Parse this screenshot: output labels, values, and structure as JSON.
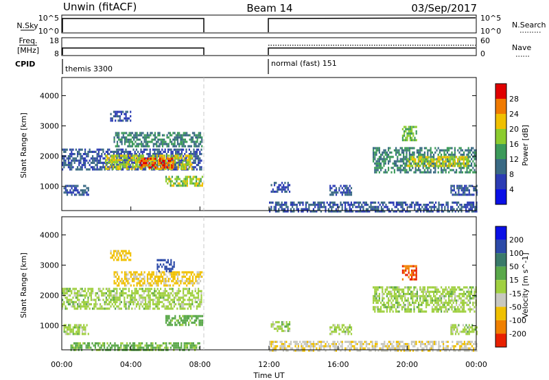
{
  "header": {
    "title_left": "Unwin (fitACF)",
    "title_center": "Beam 14",
    "title_right": "03/Sep/2017"
  },
  "panels": {
    "nsky": {
      "label": "N.Sky",
      "right_label": "N.Search",
      "left_ticks": [
        "10^5",
        "10^0"
      ],
      "right_ticks": [
        "10^5",
        "10^0"
      ]
    },
    "freq": {
      "label_top": "Freq.",
      "label_bottom": "[MHz]",
      "right_label": "Nave",
      "left_ticks": [
        "18",
        "8"
      ],
      "right_ticks": [
        "60",
        "0"
      ]
    },
    "cpid": {
      "label": "CPID",
      "segments": [
        "themis 3300",
        "normal (fast) 151"
      ]
    }
  },
  "x_axis": {
    "title": "Time UT",
    "ticks": [
      "00:00",
      "04:00",
      "08:00",
      "12:00",
      "16:00",
      "20:00",
      "00:00"
    ]
  },
  "power_colorbar": {
    "title": "Power [dB]",
    "ticks": [
      "4",
      "8",
      "12",
      "16",
      "20",
      "24",
      "28"
    ],
    "colors": [
      "#0a10e6",
      "#2c3cb4",
      "#3a6a84",
      "#3c9a5a",
      "#8ccc2e",
      "#f0c000",
      "#f07a00",
      "#e00000"
    ]
  },
  "velocity_colorbar": {
    "title": "Velocity [m s^-1]",
    "ticks": [
      "200",
      "100",
      "50",
      "15",
      "-15",
      "-50",
      "-100",
      "-200"
    ],
    "colors": [
      "#0a10e6",
      "#2c4aa8",
      "#3a7a6a",
      "#5aa84a",
      "#a0d040",
      "#c8c8c0",
      "#f0c000",
      "#f08000",
      "#e82000"
    ]
  },
  "chart_data": [
    {
      "type": "heatmap",
      "name": "power",
      "ylabel": "Slant Range [km]",
      "y_ticks": [
        "1000",
        "2000",
        "3000",
        "4000"
      ],
      "ylim": [
        200,
        4600
      ],
      "xlim_hours": [
        0,
        24
      ],
      "data_gap_hours": [
        8.1,
        12.0
      ],
      "bands": [
        {
          "t0": 0.0,
          "t1": 8.1,
          "r0": 1550,
          "r1": 2250,
          "value": 8
        },
        {
          "t0": 2.5,
          "t1": 7.5,
          "r0": 1600,
          "r1": 2050,
          "value": 20
        },
        {
          "t0": 4.5,
          "t1": 6.5,
          "r0": 1650,
          "r1": 1950,
          "value": 28
        },
        {
          "t0": 6.0,
          "t1": 8.1,
          "r0": 1050,
          "r1": 1350,
          "value": 18
        },
        {
          "t0": 0.1,
          "t1": 1.5,
          "r0": 750,
          "r1": 1050,
          "value": 8
        },
        {
          "t0": 3.0,
          "t1": 8.1,
          "r0": 2300,
          "r1": 2800,
          "value": 12
        },
        {
          "t0": 2.8,
          "t1": 4.0,
          "r0": 3200,
          "r1": 3500,
          "value": 8
        },
        {
          "t0": 12.1,
          "t1": 13.2,
          "r0": 850,
          "r1": 1150,
          "value": 8
        },
        {
          "t0": 15.5,
          "t1": 16.8,
          "r0": 750,
          "r1": 1050,
          "value": 8
        },
        {
          "t0": 18.0,
          "t1": 24.0,
          "r0": 1500,
          "r1": 2300,
          "value": 12
        },
        {
          "t0": 20.0,
          "t1": 23.5,
          "r0": 1650,
          "r1": 2000,
          "value": 20
        },
        {
          "t0": 19.7,
          "t1": 20.5,
          "r0": 2500,
          "r1": 3000,
          "value": 16
        },
        {
          "t0": 22.5,
          "t1": 24.0,
          "r0": 750,
          "r1": 1050,
          "value": 8
        },
        {
          "t0": 12.0,
          "t1": 24.0,
          "r0": 200,
          "r1": 500,
          "value": 8
        }
      ]
    },
    {
      "type": "heatmap",
      "name": "velocity",
      "ylabel": "Slant Range [km]",
      "y_ticks": [
        "1000",
        "2000",
        "3000",
        "4000"
      ],
      "ylim": [
        200,
        4600
      ],
      "xlim_hours": [
        0,
        24
      ],
      "data_gap_hours": [
        8.1,
        12.0
      ],
      "bands": [
        {
          "t0": 0.0,
          "t1": 8.1,
          "r0": 1550,
          "r1": 2250,
          "value": 0
        },
        {
          "t0": 6.0,
          "t1": 8.1,
          "r0": 1050,
          "r1": 1350,
          "value": 30
        },
        {
          "t0": 0.1,
          "t1": 1.5,
          "r0": 750,
          "r1": 1050,
          "value": 0
        },
        {
          "t0": 3.0,
          "t1": 8.1,
          "r0": 2300,
          "r1": 2800,
          "value": -60
        },
        {
          "t0": 5.5,
          "t1": 6.5,
          "r0": 2800,
          "r1": 3200,
          "value": 120
        },
        {
          "t0": 2.8,
          "t1": 4.0,
          "r0": 3200,
          "r1": 3500,
          "value": -60
        },
        {
          "t0": 12.1,
          "t1": 13.2,
          "r0": 850,
          "r1": 1150,
          "value": 0
        },
        {
          "t0": 15.5,
          "t1": 16.8,
          "r0": 750,
          "r1": 1050,
          "value": 0
        },
        {
          "t0": 18.0,
          "t1": 24.0,
          "r0": 1500,
          "r1": 2300,
          "value": 0
        },
        {
          "t0": 19.7,
          "t1": 20.5,
          "r0": 2500,
          "r1": 3000,
          "value": -200
        },
        {
          "t0": 22.5,
          "t1": 24.0,
          "r0": 750,
          "r1": 1050,
          "value": 0
        },
        {
          "t0": 12.0,
          "t1": 24.0,
          "r0": 200,
          "r1": 500,
          "value": -40
        },
        {
          "t0": 0.5,
          "t1": 8.0,
          "r0": 200,
          "r1": 450,
          "value": 25
        }
      ]
    }
  ]
}
